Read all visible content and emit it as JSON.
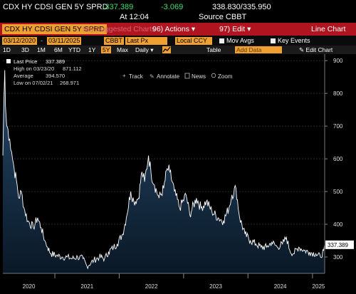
{
  "header": {
    "ticker": "CDX HY CDSI GEN 5Y SPRD",
    "price": "↓337.389",
    "change": "-3.069",
    "bid_ask": "338.830/335.950",
    "time_label": "At 12:04",
    "source": "Source CBBT"
  },
  "toolbar": {
    "security": "CDX HY CDSI GEN 5Y SPRD",
    "suggested_charts": "96) Suggested Charts",
    "actions": "96) Actions ▾",
    "edit": "97) Edit ▾",
    "title": "Line Chart"
  },
  "datebar": {
    "start_date": "03/12/2020",
    "end_date": "03/11/2025",
    "source": "CBBT",
    "field": "Last Px",
    "currency": "Local CCY",
    "mov_avgs": "Mov Avgs",
    "key_events": "Key Events"
  },
  "periodbar": {
    "periods": [
      "1D",
      "3D",
      "1M",
      "6M",
      "YTD",
      "1Y",
      "5Y",
      "Max"
    ],
    "selected": "5Y",
    "frequency": "Daily ▾",
    "chart_type_icon": "line-chart-icon",
    "table": "Table",
    "add_data": "Add Data",
    "edit_chart": "✎ Edit Chart"
  },
  "chart_tools": {
    "track": "Track",
    "annotate": "Annotate",
    "news": "News",
    "zoom": "Zoom"
  },
  "legend": {
    "items": [
      {
        "label": "Last Price",
        "value": "337.389"
      },
      {
        "label": "High on 03/23/20",
        "value": "871.112"
      },
      {
        "label": "Average",
        "value": "394.570"
      },
      {
        "label": "Low on 07/02/21",
        "value": "268.971"
      }
    ]
  },
  "colors": {
    "line": "#ffffff",
    "fill_top": "#274a6c",
    "fill_bottom": "#0a1826",
    "red_bar": "#b0141e",
    "accent": "#f0a030"
  },
  "chart_data": {
    "type": "area",
    "ylim": [
      250,
      920
    ],
    "yticks": [
      300,
      400,
      500,
      600,
      700,
      800,
      900
    ],
    "xtick_labels": [
      "2020",
      "2021",
      "2022",
      "2023",
      "2024",
      "2025"
    ],
    "last_value_label": "337.389",
    "series": [
      {
        "x": [
          "2020-03-12",
          "2020-03-18",
          "2020-03-23",
          "2020-03-27",
          "2020-04-03",
          "2020-04-10",
          "2020-04-20",
          "2020-05-01",
          "2020-05-15",
          "2020-06-01",
          "2020-06-10",
          "2020-06-25",
          "2020-07-10",
          "2020-08-01",
          "2020-09-01",
          "2020-09-25",
          "2020-10-15",
          "2020-11-05",
          "2020-11-20",
          "2020-12-10",
          "2021-01-10",
          "2021-02-10",
          "2021-03-10",
          "2021-04-10",
          "2021-05-10",
          "2021-06-10",
          "2021-07-02",
          "2021-08-10",
          "2021-09-10",
          "2021-10-10",
          "2021-11-01",
          "2021-11-30",
          "2021-12-20",
          "2022-01-20",
          "2022-02-10",
          "2022-03-07",
          "2022-03-25",
          "2022-04-20",
          "2022-05-10",
          "2022-05-25",
          "2022-06-16",
          "2022-06-30",
          "2022-07-20",
          "2022-08-15",
          "2022-09-10",
          "2022-09-30",
          "2022-10-15",
          "2022-11-10",
          "2022-12-10",
          "2023-01-15",
          "2023-02-05",
          "2023-03-15",
          "2023-04-10",
          "2023-05-10",
          "2023-06-10",
          "2023-07-15",
          "2023-08-15",
          "2023-09-15",
          "2023-10-02",
          "2023-10-25",
          "2023-11-15",
          "2023-12-15",
          "2024-01-15",
          "2024-02-15",
          "2024-03-15",
          "2024-04-15",
          "2024-05-15",
          "2024-06-15",
          "2024-07-15",
          "2024-08-06",
          "2024-08-25",
          "2024-09-15",
          "2024-10-15",
          "2024-11-15",
          "2024-12-15",
          "2025-01-20",
          "2025-02-15",
          "2025-03-05",
          "2025-03-11"
        ],
        "values": [
          610,
          780,
          871,
          760,
          700,
          690,
          660,
          620,
          570,
          520,
          480,
          500,
          450,
          410,
          390,
          420,
          390,
          350,
          330,
          310,
          305,
          300,
          300,
          295,
          300,
          295,
          272,
          290,
          300,
          295,
          315,
          330,
          340,
          370,
          420,
          500,
          470,
          480,
          560,
          530,
          610,
          560,
          520,
          480,
          510,
          570,
          560,
          500,
          450,
          490,
          430,
          480,
          450,
          470,
          440,
          420,
          410,
          450,
          490,
          510,
          420,
          370,
          350,
          340,
          330,
          330,
          345,
          330,
          340,
          360,
          320,
          310,
          330,
          320,
          315,
          310,
          300,
          320,
          337.389
        ]
      }
    ]
  }
}
